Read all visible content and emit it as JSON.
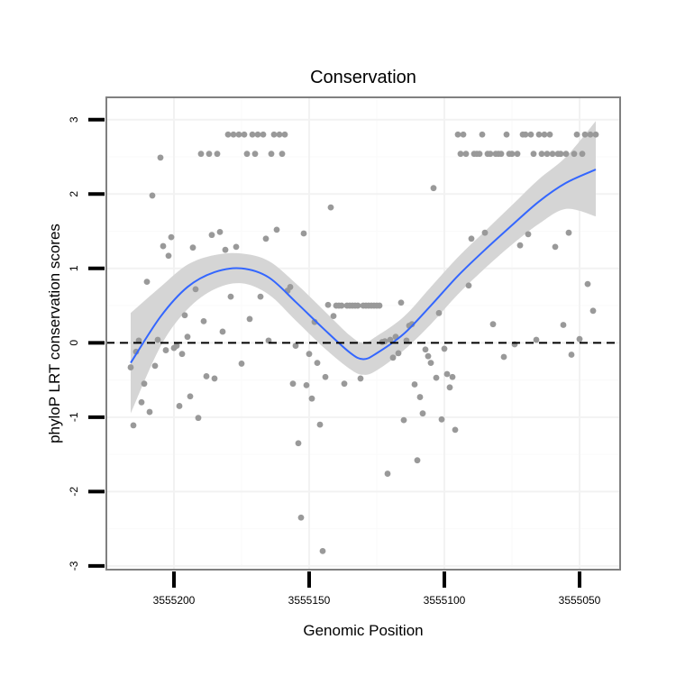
{
  "chart_data": {
    "type": "scatter",
    "title": "Conservation",
    "xlabel": "Genomic Position",
    "ylabel": "phyloP LRT conservation scores",
    "x_reversed": true,
    "xlim": [
      3555225,
      3555035
    ],
    "ylim": [
      -3.05,
      3.3
    ],
    "x_ticks": [
      3555200,
      3555150,
      3555100,
      3555050
    ],
    "x_tick_labels": [
      "3555200",
      "3555150",
      "3555100",
      "3555050"
    ],
    "y_ticks": [
      -3,
      -2,
      -1,
      0,
      1,
      2,
      3
    ],
    "y_tick_labels": [
      "-3",
      "-2",
      "-1",
      "0",
      "1",
      "2",
      "3"
    ],
    "grid": true,
    "reference_line": {
      "y": 0,
      "style": "dashed"
    },
    "colors": {
      "points": "#999999",
      "smooth_line": "#3366ff",
      "confidence_band": "#d3d3d3",
      "grid_major": "#f2f2f2",
      "grid_minor": "#fafafa",
      "panel_border": "#808080"
    },
    "points": [
      [
        3555216,
        -0.33
      ],
      [
        3555215,
        -1.11
      ],
      [
        3555214,
        -0.12
      ],
      [
        3555213,
        0.03
      ],
      [
        3555212,
        -0.8
      ],
      [
        3555211,
        -0.55
      ],
      [
        3555210,
        0.82
      ],
      [
        3555209,
        -0.93
      ],
      [
        3555208,
        1.98
      ],
      [
        3555207,
        -0.31
      ],
      [
        3555206,
        0.04
      ],
      [
        3555205,
        2.49
      ],
      [
        3555204,
        1.3
      ],
      [
        3555203,
        -0.1
      ],
      [
        3555202,
        1.17
      ],
      [
        3555201,
        1.42
      ],
      [
        3555200,
        -0.07
      ],
      [
        3555199,
        -0.04
      ],
      [
        3555198,
        -0.85
      ],
      [
        3555197,
        -0.15
      ],
      [
        3555196,
        0.37
      ],
      [
        3555195,
        0.08
      ],
      [
        3555194,
        -0.72
      ],
      [
        3555193,
        1.28
      ],
      [
        3555192,
        0.72
      ],
      [
        3555191,
        -1.01
      ],
      [
        3555190,
        2.54
      ],
      [
        3555189,
        0.29
      ],
      [
        3555188,
        -0.45
      ],
      [
        3555187,
        2.54
      ],
      [
        3555186,
        1.45
      ],
      [
        3555185,
        -0.48
      ],
      [
        3555184,
        2.54
      ],
      [
        3555183,
        1.49
      ],
      [
        3555182,
        0.15
      ],
      [
        3555181,
        1.25
      ],
      [
        3555180,
        2.8
      ],
      [
        3555179,
        0.62
      ],
      [
        3555178,
        2.8
      ],
      [
        3555177,
        1.29
      ],
      [
        3555176,
        2.8
      ],
      [
        3555175,
        -0.28
      ],
      [
        3555174,
        2.8
      ],
      [
        3555173,
        2.54
      ],
      [
        3555172,
        0.32
      ],
      [
        3555171,
        2.8
      ],
      [
        3555170,
        2.54
      ],
      [
        3555169,
        2.8
      ],
      [
        3555168,
        0.62
      ],
      [
        3555167,
        2.8
      ],
      [
        3555166,
        1.4
      ],
      [
        3555165,
        0.03
      ],
      [
        3555164,
        2.54
      ],
      [
        3555163,
        2.8
      ],
      [
        3555162,
        1.52
      ],
      [
        3555161,
        2.8
      ],
      [
        3555160,
        2.54
      ],
      [
        3555159,
        2.8
      ],
      [
        3555158,
        0.7
      ],
      [
        3555157,
        0.75
      ],
      [
        3555156,
        -0.55
      ],
      [
        3555155,
        -0.04
      ],
      [
        3555154,
        -1.35
      ],
      [
        3555153,
        -2.35
      ],
      [
        3555152,
        1.47
      ],
      [
        3555151,
        -0.57
      ],
      [
        3555150,
        -0.15
      ],
      [
        3555149,
        -0.75
      ],
      [
        3555148,
        0.28
      ],
      [
        3555147,
        -0.27
      ],
      [
        3555146,
        -1.1
      ],
      [
        3555145,
        -2.8
      ],
      [
        3555144,
        -0.46
      ],
      [
        3555143,
        0.51
      ],
      [
        3555142,
        1.82
      ],
      [
        3555141,
        0.36
      ],
      [
        3555140,
        0.5
      ],
      [
        3555139,
        0.5
      ],
      [
        3555138,
        0.5
      ],
      [
        3555137,
        -0.55
      ],
      [
        3555136,
        0.5
      ],
      [
        3555135,
        0.5
      ],
      [
        3555134,
        0.5
      ],
      [
        3555133,
        0.5
      ],
      [
        3555132,
        0.5
      ],
      [
        3555131,
        -0.48
      ],
      [
        3555130,
        0.5
      ],
      [
        3555129,
        0.5
      ],
      [
        3555128,
        0.5
      ],
      [
        3555127,
        0.5
      ],
      [
        3555126,
        0.5
      ],
      [
        3555125,
        0.5
      ],
      [
        3555124,
        0.5
      ],
      [
        3555123,
        0.01
      ],
      [
        3555122,
        0.02
      ],
      [
        3555121,
        -1.76
      ],
      [
        3555120,
        0.04
      ],
      [
        3555119,
        -0.2
      ],
      [
        3555118,
        0.08
      ],
      [
        3555117,
        -0.14
      ],
      [
        3555116,
        0.54
      ],
      [
        3555115,
        -1.04
      ],
      [
        3555114,
        0.03
      ],
      [
        3555113,
        0.23
      ],
      [
        3555112,
        0.25
      ],
      [
        3555111,
        -0.56
      ],
      [
        3555110,
        -1.58
      ],
      [
        3555109,
        -0.73
      ],
      [
        3555108,
        -0.95
      ],
      [
        3555107,
        -0.09
      ],
      [
        3555106,
        -0.18
      ],
      [
        3555105,
        -0.27
      ],
      [
        3555104,
        2.08
      ],
      [
        3555103,
        -0.47
      ],
      [
        3555102,
        0.4
      ],
      [
        3555101,
        -1.03
      ],
      [
        3555100,
        -0.08
      ],
      [
        3555099,
        -0.42
      ],
      [
        3555098,
        -0.6
      ],
      [
        3555097,
        -0.46
      ],
      [
        3555096,
        -1.17
      ],
      [
        3555095,
        2.8
      ],
      [
        3555094,
        2.54
      ],
      [
        3555093,
        2.8
      ],
      [
        3555092,
        2.54
      ],
      [
        3555091,
        0.77
      ],
      [
        3555090,
        1.4
      ],
      [
        3555089,
        2.54
      ],
      [
        3555088,
        2.54
      ],
      [
        3555087,
        2.54
      ],
      [
        3555086,
        2.8
      ],
      [
        3555085,
        1.48
      ],
      [
        3555084,
        2.54
      ],
      [
        3555083,
        2.54
      ],
      [
        3555082,
        0.25
      ],
      [
        3555081,
        2.54
      ],
      [
        3555080,
        2.54
      ],
      [
        3555079,
        2.54
      ],
      [
        3555078,
        -0.19
      ],
      [
        3555077,
        2.8
      ],
      [
        3555076,
        2.54
      ],
      [
        3555075,
        2.54
      ],
      [
        3555074,
        -0.02
      ],
      [
        3555073,
        2.54
      ],
      [
        3555072,
        1.31
      ],
      [
        3555071,
        2.8
      ],
      [
        3555070,
        2.8
      ],
      [
        3555069,
        1.46
      ],
      [
        3555068,
        2.8
      ],
      [
        3555067,
        2.54
      ],
      [
        3555066,
        0.04
      ],
      [
        3555065,
        2.8
      ],
      [
        3555064,
        2.54
      ],
      [
        3555063,
        2.8
      ],
      [
        3555062,
        2.54
      ],
      [
        3555061,
        2.8
      ],
      [
        3555060,
        2.54
      ],
      [
        3555059,
        1.29
      ],
      [
        3555058,
        2.54
      ],
      [
        3555057,
        2.54
      ],
      [
        3555056,
        0.24
      ],
      [
        3555055,
        2.54
      ],
      [
        3555054,
        1.48
      ],
      [
        3555053,
        -0.16
      ],
      [
        3555052,
        2.54
      ],
      [
        3555051,
        2.8
      ],
      [
        3555050,
        0.05
      ],
      [
        3555049,
        2.54
      ],
      [
        3555048,
        2.8
      ],
      [
        3555047,
        0.79
      ],
      [
        3555046,
        2.8
      ],
      [
        3555045,
        0.43
      ],
      [
        3555044,
        2.8
      ]
    ],
    "smooth": {
      "x": [
        3555216,
        3555205,
        3555195,
        3555185,
        3555175,
        3555165,
        3555155,
        3555145,
        3555135,
        3555130,
        3555125,
        3555115,
        3555105,
        3555095,
        3555085,
        3555075,
        3555065,
        3555055,
        3555044
      ],
      "y": [
        -0.27,
        0.35,
        0.75,
        0.95,
        1.0,
        0.88,
        0.55,
        0.2,
        -0.13,
        -0.22,
        -0.14,
        0.12,
        0.5,
        0.9,
        1.25,
        1.58,
        1.9,
        2.15,
        2.33
      ],
      "lower": [
        -0.95,
        -0.05,
        0.45,
        0.72,
        0.8,
        0.65,
        0.3,
        -0.05,
        -0.35,
        -0.43,
        -0.37,
        -0.1,
        0.25,
        0.65,
        1.0,
        1.32,
        1.6,
        1.8,
        1.7
      ],
      "upper": [
        0.4,
        0.75,
        1.05,
        1.18,
        1.2,
        1.1,
        0.8,
        0.45,
        0.1,
        0.0,
        0.09,
        0.35,
        0.75,
        1.15,
        1.5,
        1.85,
        2.2,
        2.5,
        2.98
      ]
    }
  }
}
